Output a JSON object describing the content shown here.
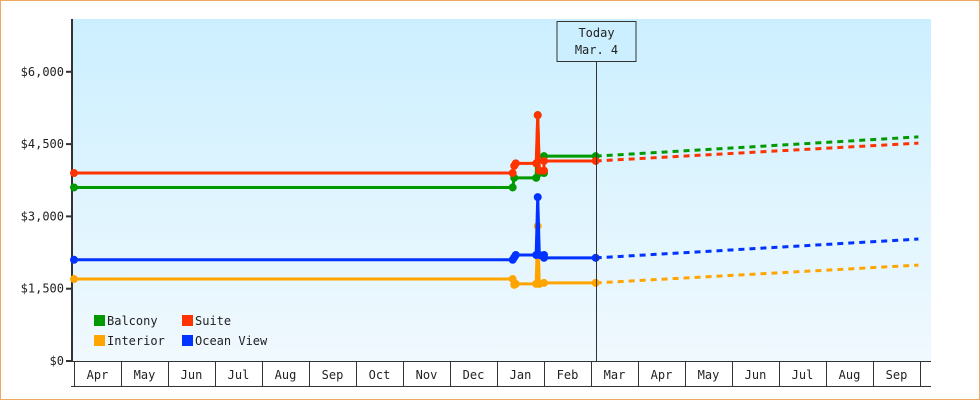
{
  "chart_data": {
    "type": "line",
    "x_ticks": [
      "Apr",
      "May",
      "Jun",
      "Jul",
      "Aug",
      "Sep",
      "Oct",
      "Nov",
      "Dec",
      "Jan",
      "Feb",
      "Mar",
      "Apr",
      "May",
      "Jun",
      "Jul",
      "Aug",
      "Sep"
    ],
    "y_ticks": [
      "$0",
      "$1,500",
      "$3,000",
      "$4,500",
      "$6,000"
    ],
    "y_tick_values": [
      0,
      1500,
      3000,
      4500,
      6000
    ],
    "ylim": [
      0,
      7000
    ],
    "grid": false,
    "legend_placement": "bottom-left",
    "today_marker": {
      "line1": "Today",
      "line2": "Mar. 4",
      "month_index": 11,
      "day": 4
    },
    "point_format": "[x_tick_index, day_of_month, price_usd]",
    "series": [
      {
        "name": "Balcony",
        "color": "#009900",
        "history": [
          [
            0,
            1,
            3600
          ],
          [
            9,
            11,
            3600
          ],
          [
            9,
            12,
            3800
          ],
          [
            9,
            26,
            3800
          ],
          [
            9,
            27,
            5100
          ],
          [
            9,
            28,
            3900
          ],
          [
            10,
            1,
            3900
          ],
          [
            10,
            1,
            4250
          ],
          [
            11,
            4,
            4250
          ]
        ],
        "forecast": [
          [
            11,
            4,
            4250
          ],
          [
            17,
            30,
            4650
          ]
        ]
      },
      {
        "name": "Suite",
        "color": "#ff3300",
        "history": [
          [
            0,
            1,
            3900
          ],
          [
            9,
            11,
            3900
          ],
          [
            9,
            12,
            4050
          ],
          [
            9,
            13,
            4100
          ],
          [
            9,
            26,
            4100
          ],
          [
            9,
            27,
            5100
          ],
          [
            9,
            28,
            3950
          ],
          [
            10,
            1,
            3950
          ],
          [
            10,
            1,
            4150
          ],
          [
            11,
            4,
            4150
          ]
        ],
        "forecast": [
          [
            11,
            4,
            4150
          ],
          [
            17,
            30,
            4520
          ]
        ]
      },
      {
        "name": "Interior",
        "color": "#ffa500",
        "history": [
          [
            0,
            1,
            1700
          ],
          [
            9,
            11,
            1700
          ],
          [
            9,
            12,
            1580
          ],
          [
            9,
            13,
            1600
          ],
          [
            9,
            26,
            1600
          ],
          [
            9,
            27,
            2800
          ],
          [
            9,
            28,
            1600
          ],
          [
            10,
            1,
            1620
          ],
          [
            11,
            4,
            1620
          ]
        ],
        "forecast": [
          [
            11,
            4,
            1620
          ],
          [
            17,
            30,
            1990
          ]
        ]
      },
      {
        "name": "Ocean View",
        "color": "#0033ff",
        "history": [
          [
            0,
            1,
            2100
          ],
          [
            9,
            11,
            2100
          ],
          [
            9,
            12,
            2150
          ],
          [
            9,
            13,
            2200
          ],
          [
            9,
            26,
            2200
          ],
          [
            9,
            27,
            3400
          ],
          [
            9,
            28,
            2200
          ],
          [
            10,
            1,
            2200
          ],
          [
            10,
            1,
            2140
          ],
          [
            11,
            4,
            2140
          ]
        ],
        "forecast": [
          [
            11,
            4,
            2140
          ],
          [
            17,
            30,
            2530
          ]
        ]
      }
    ]
  }
}
